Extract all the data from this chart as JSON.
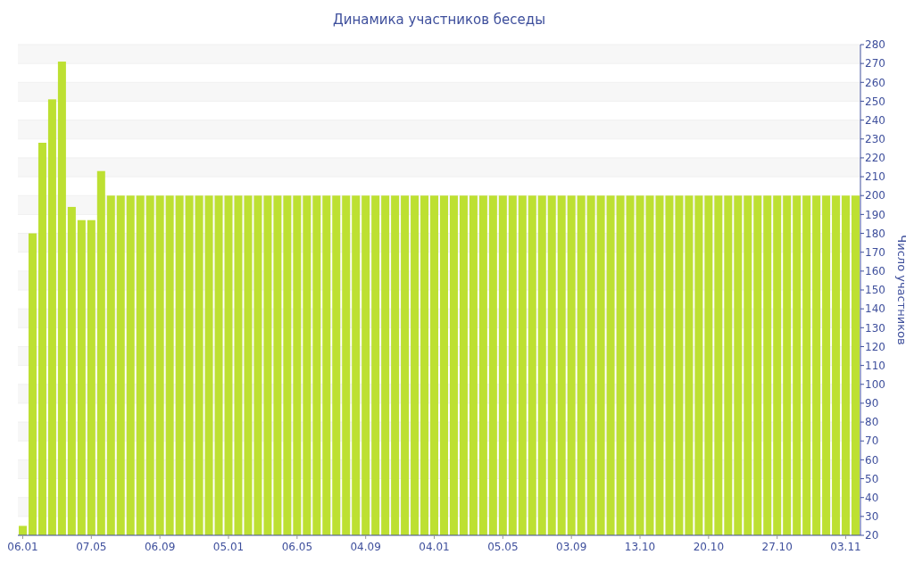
{
  "chart_data": {
    "type": "bar",
    "title": "Динамика участников беседы",
    "ylabel": "Число участников",
    "categories": [
      "06.01",
      null,
      null,
      null,
      null,
      null,
      null,
      "07.05",
      null,
      null,
      null,
      null,
      null,
      null,
      "06.09",
      null,
      null,
      null,
      null,
      null,
      null,
      "05.01",
      null,
      null,
      null,
      null,
      null,
      null,
      "06.05",
      null,
      null,
      null,
      null,
      null,
      null,
      "04.09",
      null,
      null,
      null,
      null,
      null,
      null,
      "04.01",
      null,
      null,
      null,
      null,
      null,
      null,
      "05.05",
      null,
      null,
      null,
      null,
      null,
      null,
      "03.09",
      null,
      null,
      null,
      null,
      null,
      null,
      "13.10",
      null,
      null,
      null,
      null,
      null,
      null,
      "20.10",
      null,
      null,
      null,
      null,
      null,
      null,
      "27.10",
      null,
      null,
      null,
      null,
      null,
      null,
      "03.11",
      null
    ],
    "values": [
      25,
      180,
      228,
      251,
      271,
      194,
      187,
      187,
      213,
      200,
      200,
      200,
      200,
      200,
      200,
      200,
      200,
      200,
      200,
      200,
      200,
      200,
      200,
      200,
      200,
      200,
      200,
      200,
      200,
      200,
      200,
      200,
      200,
      200,
      200,
      200,
      200,
      200,
      200,
      200,
      200,
      200,
      200,
      200,
      200,
      200,
      200,
      200,
      200,
      200,
      200,
      200,
      200,
      200,
      200,
      200,
      200,
      200,
      200,
      200,
      200,
      200,
      200,
      200,
      200,
      200,
      200,
      200,
      200,
      200,
      200,
      200,
      200,
      200,
      200,
      200,
      200,
      200,
      200,
      200,
      200,
      200,
      200,
      200,
      200,
      200
    ],
    "color": "#bde032",
    "ylim": [
      20,
      280
    ],
    "yticks": [
      20,
      30,
      40,
      50,
      60,
      70,
      80,
      90,
      100,
      110,
      120,
      130,
      140,
      150,
      160,
      170,
      180,
      190,
      200,
      210,
      220,
      230,
      240,
      250,
      260,
      270,
      280
    ],
    "grid": "y"
  }
}
